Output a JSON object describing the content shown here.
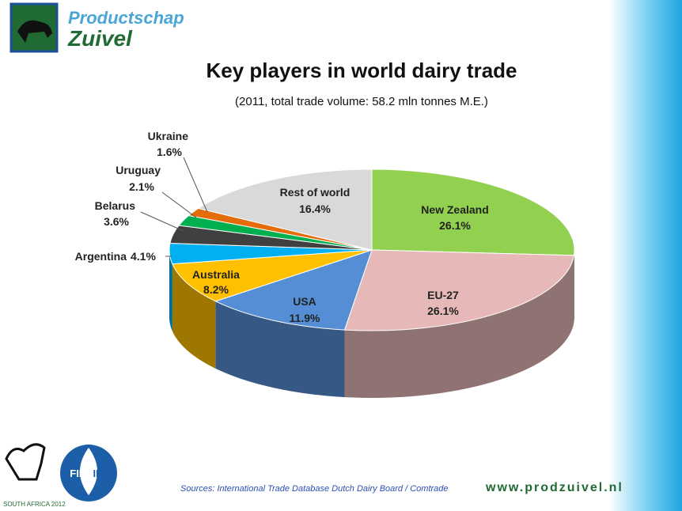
{
  "header": {
    "brand_top": "Productschap",
    "brand_bottom": "Zuivel"
  },
  "chart_data": {
    "type": "pie3d",
    "title": "Key players in world dairy trade",
    "subtitle": "(2011, total trade volume: 58.2 mln tonnes M.E.)",
    "categories": [
      "New Zealand",
      "EU-27",
      "USA",
      "Australia",
      "Argentina",
      "Belarus",
      "Uruguay",
      "Ukraine",
      "Rest of world"
    ],
    "values": [
      26.1,
      26.1,
      11.9,
      8.2,
      4.1,
      3.6,
      2.1,
      1.6,
      16.4
    ],
    "value_labels": [
      "26.1%",
      "26.1%",
      "11.9%",
      "8.2%",
      "4.1%",
      "3.6%",
      "2.1%",
      "1.6%",
      "16.4%"
    ],
    "colors": [
      "#92d050",
      "#e6b9b8",
      "#558ed5",
      "#ffc000",
      "#00b0f0",
      "#404040",
      "#00b050",
      "#e46c0a",
      "#d9d9d9"
    ]
  },
  "footer": {
    "source": "Sources: International Trade Database Dutch Dairy Board / Comtrade",
    "website": "www.prodzuivel.nl",
    "event": "SOUTH AFRICA 2012",
    "fil": "FIL",
    "idf": "IDF"
  }
}
